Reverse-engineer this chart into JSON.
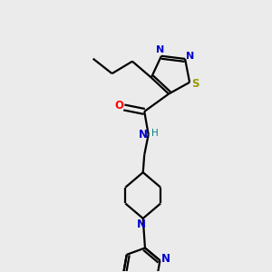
{
  "background_color": "#ebebeb",
  "line_color": "#000000",
  "nitrogen_color": "#0000cc",
  "oxygen_color": "#ff0000",
  "sulfur_color": "#999900",
  "hydrogen_color": "#008080",
  "bond_lw": 1.6,
  "figsize": [
    3.0,
    3.0
  ],
  "dpi": 100,
  "xlim": [
    0,
    10
  ],
  "ylim": [
    0,
    10
  ]
}
